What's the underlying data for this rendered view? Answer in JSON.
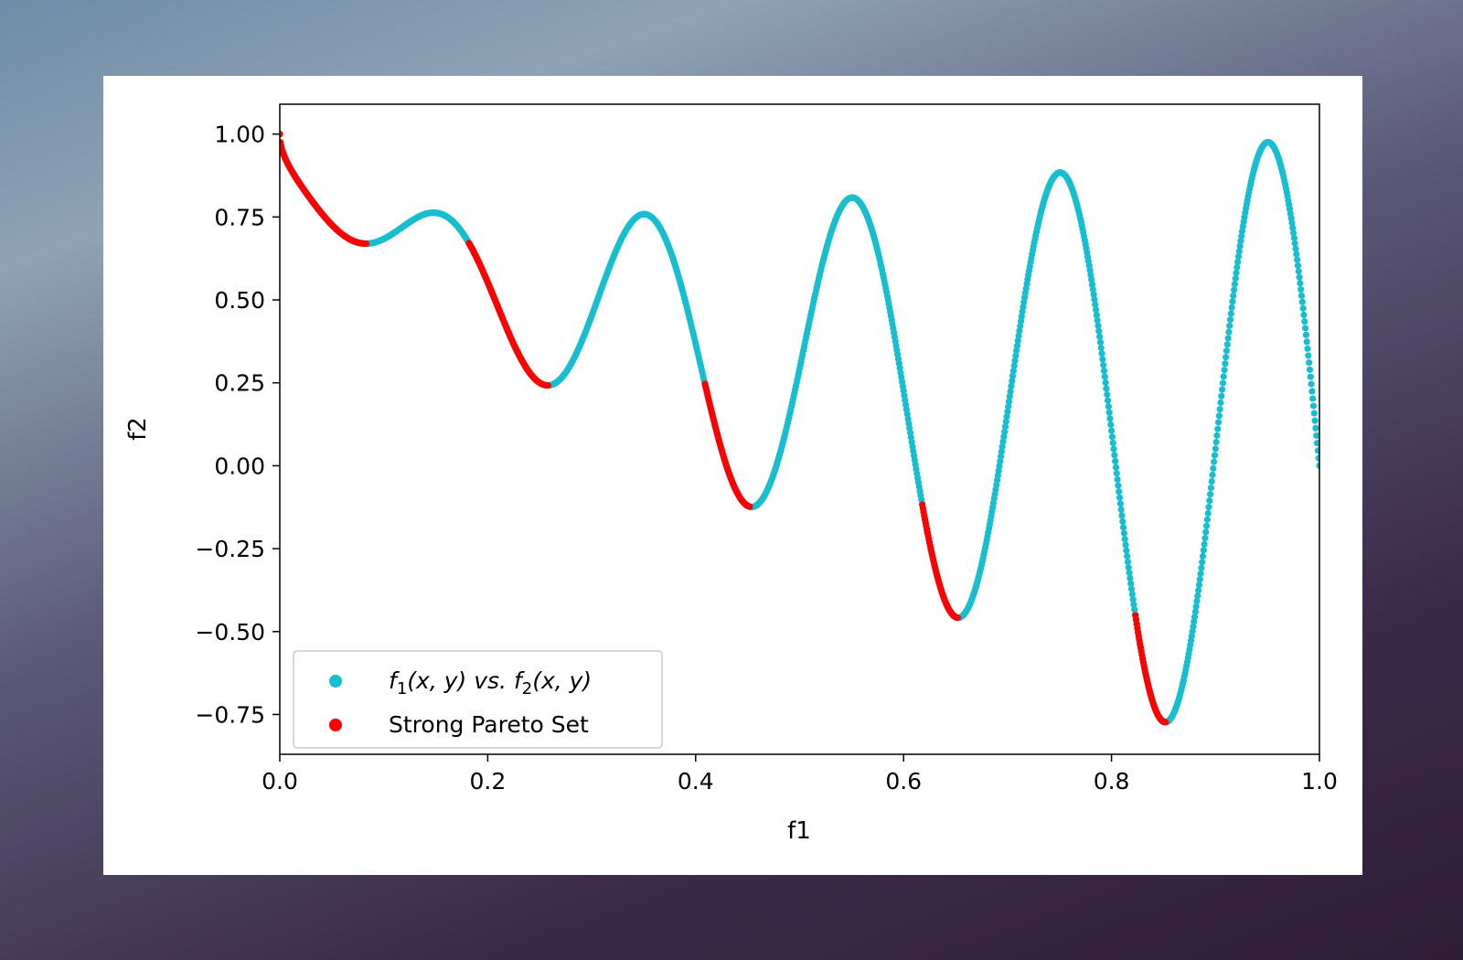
{
  "chart_data": {
    "type": "scatter",
    "xlabel": "f1",
    "ylabel": "f2",
    "xlim": [
      0.0,
      1.0
    ],
    "ylim": [
      -0.87,
      1.09
    ],
    "xticks": [
      "0.0",
      "0.2",
      "0.4",
      "0.6",
      "0.8",
      "1.0"
    ],
    "xtick_values": [
      0.0,
      0.2,
      0.4,
      0.6,
      0.8,
      1.0
    ],
    "yticks": [
      "1.00",
      "0.75",
      "0.50",
      "0.25",
      "0.00",
      "−0.25",
      "−0.50",
      "−0.75"
    ],
    "ytick_values": [
      1.0,
      0.75,
      0.5,
      0.25,
      0.0,
      -0.25,
      -0.5,
      -0.75
    ],
    "grid": false,
    "legend_position": "lower-left",
    "legend": [
      {
        "label_parts": [
          "f",
          "1",
          "(x, y) vs. ",
          "f",
          "2",
          "(x, y)"
        ],
        "color": "#17becf"
      },
      {
        "label": "Strong Pareto Set",
        "color": "#ff0000"
      }
    ],
    "series": [
      {
        "name": "f1(x, y) vs. f2(x, y)",
        "color": "#17becf",
        "function": "f2 = 1 - sqrt(f1) - f1*sin(10*pi*f1)",
        "x_range": [
          0.0,
          1.0
        ]
      },
      {
        "name": "Strong Pareto Set",
        "color": "#ff0000",
        "function": "f2 = 1 - sqrt(f1) - f1*sin(10*pi*f1)",
        "x_ranges": [
          [
            0.0,
            0.083
          ],
          [
            0.182,
            0.258
          ],
          [
            0.409,
            0.452
          ],
          [
            0.618,
            0.652
          ],
          [
            0.823,
            0.852
          ]
        ]
      }
    ]
  }
}
